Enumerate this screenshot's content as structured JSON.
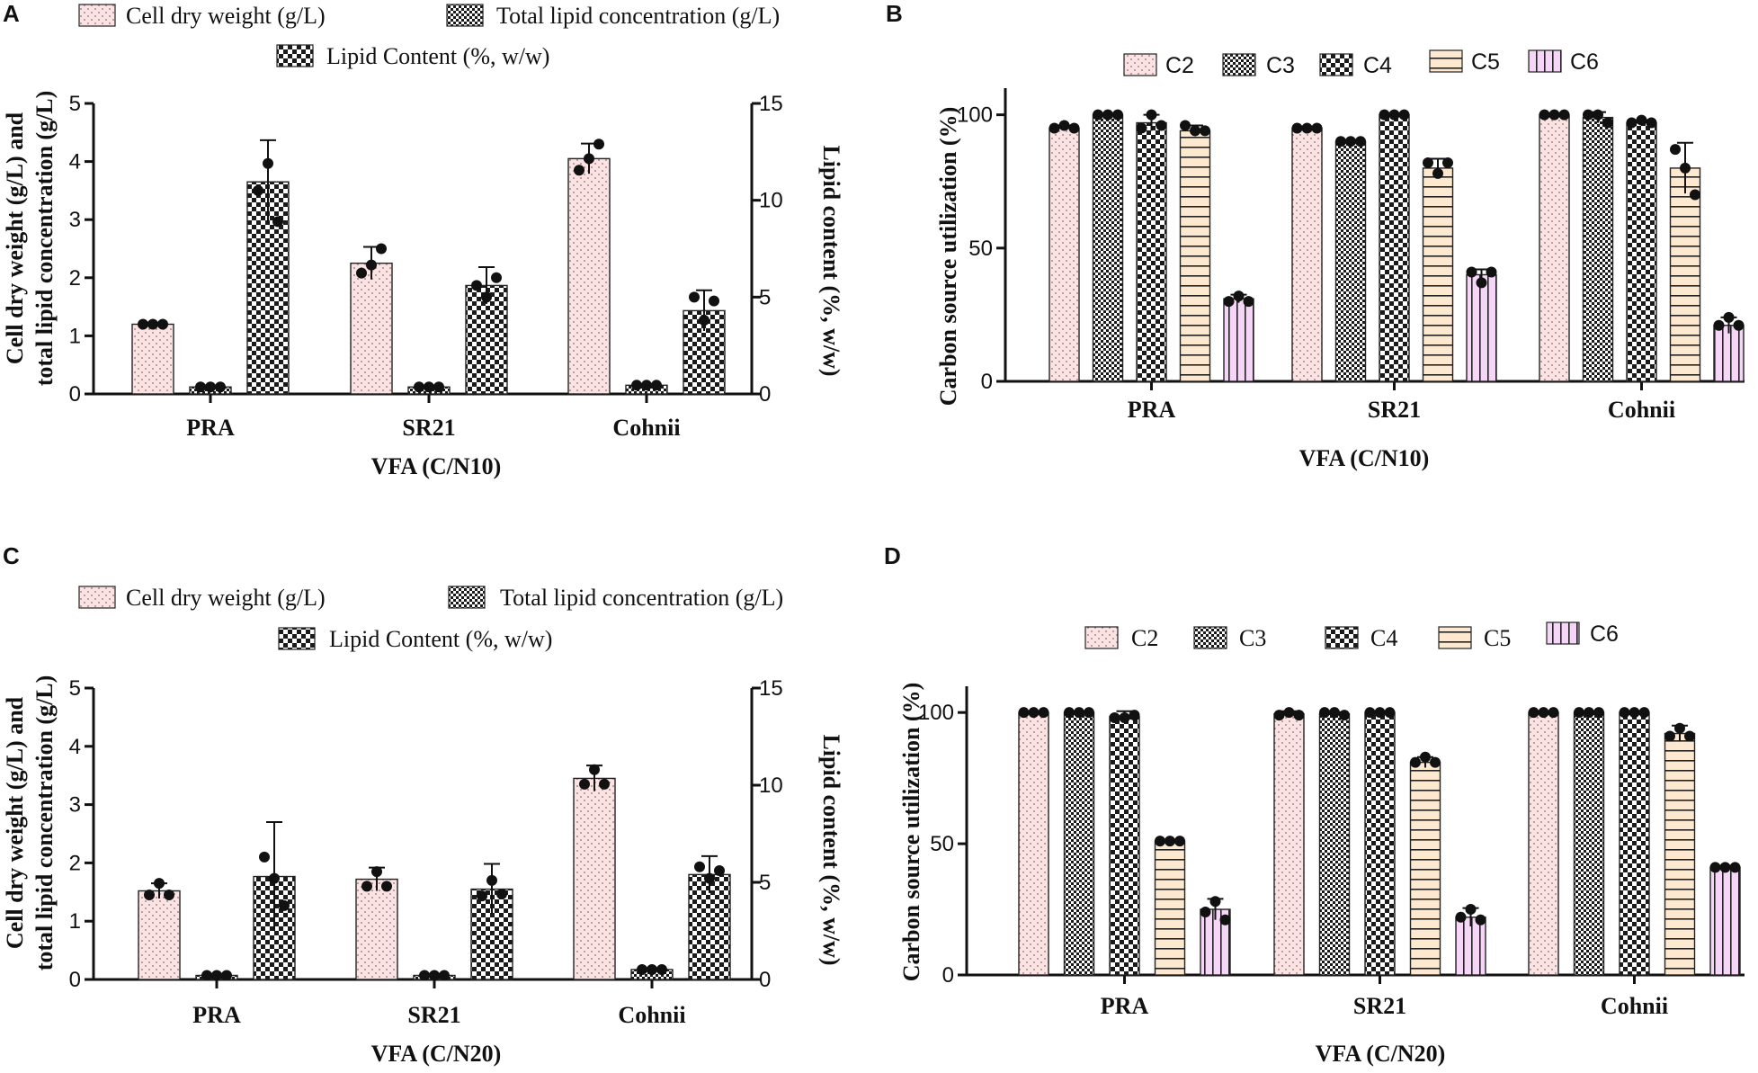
{
  "colors": {
    "pink": "#fbe3e3",
    "peach": "#fde8d0",
    "violet": "#f6d6f6",
    "ink": "#111111"
  },
  "chart_data": [
    {
      "panel": "A",
      "type": "bar",
      "dual_axis": true,
      "categories": [
        "PRA",
        "SR21",
        "Cohnii"
      ],
      "xlabel": "VFA (C/N10)",
      "ylabel": "Cell dry weight (g/L) and total lipid concentration (g/L)",
      "ylabel_lines": [
        "Cell dry weight (g/L) and",
        "total lipid concentration (g/L)"
      ],
      "ylim": [
        0,
        5
      ],
      "yticks": [
        0,
        1,
        2,
        3,
        4,
        5
      ],
      "y2label": "Lipid content (%, w/w)",
      "y2lim": [
        0,
        15
      ],
      "y2ticks": [
        0,
        5,
        10,
        15
      ],
      "legend": [
        "Cell dry weight (g/L)",
        "Total lipid concentration (g/L)",
        "Lipid Content (%, w/w)"
      ],
      "series": [
        {
          "name": "Cell dry weight (g/L)",
          "axis": "left",
          "pattern": "dots-pink",
          "values": [
            1.2,
            2.25,
            4.05
          ],
          "errors": [
            0.02,
            0.28,
            0.26
          ],
          "points": [
            [
              1.2,
              1.2,
              1.2
            ],
            [
              2.08,
              2.22,
              2.5
            ],
            [
              3.85,
              4.05,
              4.3
            ]
          ]
        },
        {
          "name": "Total lipid concentration (g/L)",
          "axis": "left",
          "pattern": "checker-fine",
          "values": [
            0.12,
            0.12,
            0.15
          ],
          "errors": [
            0.01,
            0.01,
            0.01
          ],
          "points": [
            [
              0.12,
              0.12,
              0.12
            ],
            [
              0.12,
              0.12,
              0.12
            ],
            [
              0.15,
              0.15,
              0.15
            ]
          ]
        },
        {
          "name": "Lipid Content (%, w/w)",
          "axis": "right",
          "pattern": "checker-coarse",
          "values": [
            10.95,
            5.6,
            4.3
          ],
          "errors": [
            2.15,
            0.95,
            1.05
          ],
          "points": [
            [
              10.5,
              11.9,
              8.9
            ],
            [
              5.6,
              5.0,
              6.0
            ],
            [
              5.0,
              3.8,
              4.8
            ]
          ]
        }
      ]
    },
    {
      "panel": "B",
      "type": "bar",
      "categories": [
        "PRA",
        "SR21",
        "Cohnii"
      ],
      "xlabel": "VFA (C/N10)",
      "ylabel": "Carbon source utilization (%)",
      "ylim": [
        0,
        110
      ],
      "yticks": [
        0,
        50,
        100
      ],
      "legend": [
        "C2",
        "C3",
        "C4",
        "C5",
        "C6"
      ],
      "series": [
        {
          "name": "C2",
          "pattern": "dots-pink",
          "values": [
            95,
            95,
            100
          ],
          "errors": [
            1,
            0.5,
            0.2
          ],
          "points": [
            [
              95,
              96,
              95
            ],
            [
              95,
              95,
              95
            ],
            [
              100,
              100,
              100
            ]
          ]
        },
        {
          "name": "C3",
          "pattern": "checker-fine",
          "values": [
            100,
            90,
            99
          ],
          "errors": [
            0.3,
            0.5,
            2
          ],
          "points": [
            [
              100,
              100,
              100
            ],
            [
              90,
              90,
              90
            ],
            [
              100,
              100,
              97
            ]
          ]
        },
        {
          "name": "C4",
          "pattern": "checker-coarse",
          "values": [
            97,
            100,
            97
          ],
          "errors": [
            3,
            0.2,
            1
          ],
          "points": [
            [
              95,
              100,
              96
            ],
            [
              100,
              100,
              100
            ],
            [
              97,
              98,
              97
            ]
          ]
        },
        {
          "name": "C5",
          "pattern": "hlines-peach",
          "values": [
            94,
            80,
            80
          ],
          "errors": [
            2,
            3.5,
            9.5
          ],
          "points": [
            [
              96,
              94,
              94
            ],
            [
              82,
              78,
              82
            ],
            [
              87,
              80,
              70
            ]
          ]
        },
        {
          "name": "C6",
          "pattern": "vlines-violet",
          "values": [
            31,
            40,
            21
          ],
          "errors": [
            1.5,
            2,
            3
          ],
          "points": [
            [
              30,
              32,
              30
            ],
            [
              41,
              37,
              41
            ],
            [
              21,
              24,
              21
            ]
          ]
        }
      ]
    },
    {
      "panel": "C",
      "type": "bar",
      "dual_axis": true,
      "categories": [
        "PRA",
        "SR21",
        "Cohnii"
      ],
      "xlabel": "VFA (C/N20)",
      "ylabel": "Cell dry weight (g/L) and total lipid concentration (g/L)",
      "ylabel_lines": [
        "Cell dry weight (g/L) and",
        "total lipid concentration (g/L)"
      ],
      "ylim": [
        0,
        5
      ],
      "yticks": [
        0,
        1,
        2,
        3,
        4,
        5
      ],
      "y2label": "Lipid content (%, w/w)",
      "y2lim": [
        0,
        15
      ],
      "y2ticks": [
        0,
        5,
        10,
        15
      ],
      "legend": [
        "Cell dry weight (g/L)",
        "Total lipid concentration (g/L)",
        "Lipid Content (%, w/w)"
      ],
      "series": [
        {
          "name": "Cell dry weight (g/L)",
          "axis": "left",
          "pattern": "dots-pink",
          "values": [
            1.52,
            1.72,
            3.45
          ],
          "errors": [
            0.13,
            0.2,
            0.22
          ],
          "points": [
            [
              1.45,
              1.65,
              1.45
            ],
            [
              1.6,
              1.85,
              1.6
            ],
            [
              3.35,
              3.6,
              3.35
            ]
          ]
        },
        {
          "name": "Total lipid concentration (g/L)",
          "axis": "left",
          "pattern": "checker-fine",
          "values": [
            0.07,
            0.07,
            0.17
          ],
          "errors": [
            0.01,
            0.01,
            0.01
          ],
          "points": [
            [
              0.07,
              0.07,
              0.07
            ],
            [
              0.07,
              0.07,
              0.07
            ],
            [
              0.17,
              0.17,
              0.17
            ]
          ]
        },
        {
          "name": "Lipid Content (%, w/w)",
          "axis": "right",
          "pattern": "checker-coarse",
          "values": [
            5.3,
            4.65,
            5.4
          ],
          "errors": [
            2.8,
            1.3,
            0.95
          ],
          "points": [
            [
              6.3,
              5.2,
              3.8
            ],
            [
              4.3,
              5.1,
              4.4
            ],
            [
              5.8,
              5.2,
              5.6
            ]
          ]
        }
      ]
    },
    {
      "panel": "D",
      "type": "bar",
      "categories": [
        "PRA",
        "SR21",
        "Cohnii"
      ],
      "xlabel": "VFA (C/N20)",
      "ylabel": "Carbon source utilization (%)",
      "ylim": [
        0,
        110
      ],
      "yticks": [
        0,
        50,
        100
      ],
      "legend": [
        "C2",
        "C3",
        "C4",
        "C5",
        "C6"
      ],
      "series": [
        {
          "name": "C2",
          "pattern": "dots-pink",
          "values": [
            100,
            99.5,
            100
          ],
          "errors": [
            0.2,
            1,
            0.2
          ],
          "points": [
            [
              100,
              100,
              100
            ],
            [
              99,
              100,
              99
            ],
            [
              100,
              100,
              100
            ]
          ]
        },
        {
          "name": "C3",
          "pattern": "checker-fine",
          "values": [
            100,
            99.5,
            100
          ],
          "errors": [
            0.2,
            0.6,
            0.2
          ],
          "points": [
            [
              100,
              100,
              100
            ],
            [
              100,
              100,
              99
            ],
            [
              100,
              100,
              100
            ]
          ]
        },
        {
          "name": "C4",
          "pattern": "checker-coarse",
          "values": [
            98.5,
            100,
            100
          ],
          "errors": [
            2,
            0.2,
            0.2
          ],
          "points": [
            [
              98,
              98,
              99
            ],
            [
              100,
              100,
              100
            ],
            [
              100,
              100,
              100
            ]
          ]
        },
        {
          "name": "C5",
          "pattern": "hlines-peach",
          "values": [
            51,
            81,
            92
          ],
          "errors": [
            0.5,
            2,
            3
          ],
          "points": [
            [
              51,
              51,
              51
            ],
            [
              81,
              83,
              81
            ],
            [
              91,
              94,
              91
            ]
          ]
        },
        {
          "name": "C6",
          "pattern": "vlines-violet",
          "values": [
            25,
            22,
            41
          ],
          "errors": [
            4,
            3.5,
            0.6
          ],
          "points": [
            [
              24,
              28,
              21
            ],
            [
              22,
              25,
              21
            ],
            [
              41,
              41,
              41
            ]
          ]
        }
      ]
    }
  ]
}
